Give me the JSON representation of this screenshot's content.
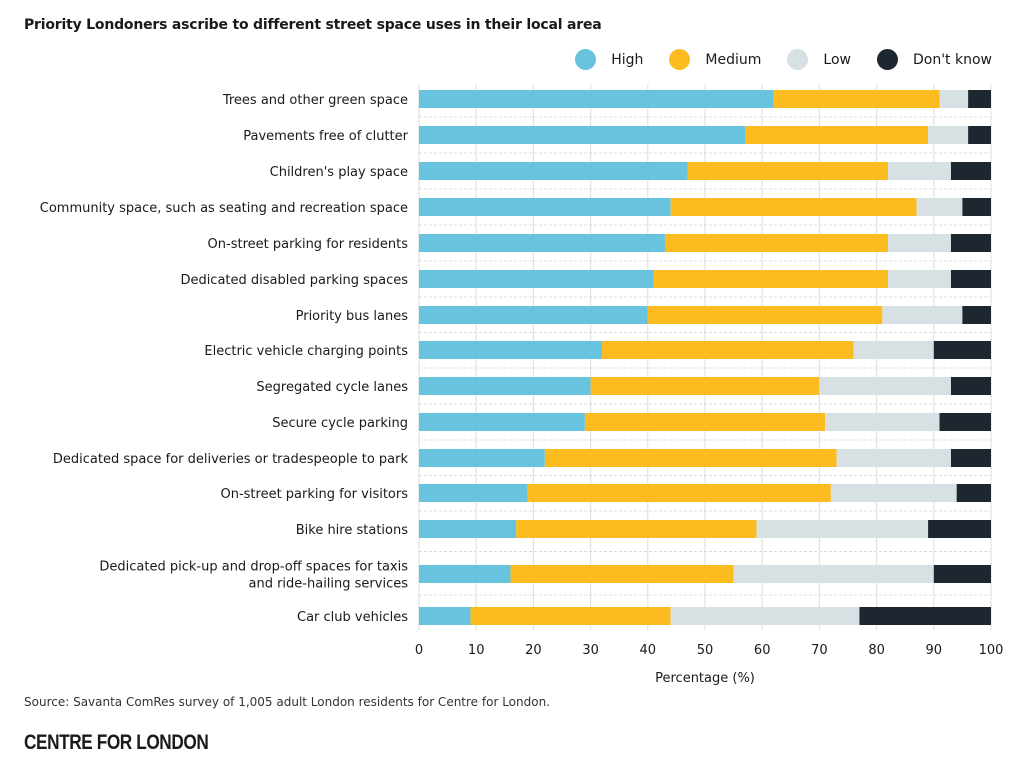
{
  "title": "Priority Londoners ascribe to different street space uses in their local area",
  "legend": [
    {
      "label": "High",
      "color": "#68C3DE"
    },
    {
      "label": "Medium",
      "color": "#FCBC1F"
    },
    {
      "label": "Low",
      "color": "#D7E0E2"
    },
    {
      "label": "Don't know",
      "color": "#1E2730"
    }
  ],
  "chart_data": {
    "type": "bar",
    "orientation": "horizontal",
    "stacked": true,
    "title": "Priority Londoners ascribe to different street space uses in their local area",
    "xlabel": "Percentage (%)",
    "ylabel": "",
    "xlim": [
      0,
      100
    ],
    "xticks": [
      0,
      10,
      20,
      30,
      40,
      50,
      60,
      70,
      80,
      90,
      100
    ],
    "grid": true,
    "legend_position": "top-right",
    "categories": [
      [
        "Trees and other green space"
      ],
      [
        "Pavements free of clutter"
      ],
      [
        "Children's play space"
      ],
      [
        "Community space, such as seating and recreation space"
      ],
      [
        "On-street parking for residents"
      ],
      [
        "Dedicated disabled parking spaces"
      ],
      [
        "Priority bus lanes"
      ],
      [
        "Electric vehicle charging points"
      ],
      [
        "Segregated cycle lanes"
      ],
      [
        "Secure cycle parking"
      ],
      [
        "Dedicated space for deliveries or tradespeople to park"
      ],
      [
        "On-street parking for visitors"
      ],
      [
        "Bike hire stations"
      ],
      [
        "Dedicated pick-up and drop-off spaces for taxis",
        "and ride-hailing services"
      ],
      [
        "Car club vehicles"
      ]
    ],
    "series": [
      {
        "name": "High",
        "color": "#68C3DE",
        "values": [
          62,
          57,
          47,
          44,
          43,
          41,
          40,
          32,
          30,
          29,
          22,
          19,
          17,
          16,
          9
        ]
      },
      {
        "name": "Medium",
        "color": "#FCBC1F",
        "values": [
          29,
          32,
          35,
          43,
          39,
          41,
          41,
          44,
          40,
          42,
          51,
          53,
          42,
          39,
          35
        ]
      },
      {
        "name": "Low",
        "color": "#D7E0E2",
        "values": [
          5,
          7,
          11,
          8,
          11,
          11,
          14,
          14,
          23,
          20,
          20,
          22,
          30,
          35,
          33
        ]
      },
      {
        "name": "Don't know",
        "color": "#1E2730",
        "values": [
          4,
          4,
          7,
          5,
          7,
          7,
          5,
          10,
          7,
          9,
          7,
          6,
          11,
          10,
          23
        ]
      }
    ]
  },
  "source": "Source: Savanta ComRes survey of 1,005 adult London residents for Centre for London.",
  "logo": "CENTRE FOR LONDON"
}
